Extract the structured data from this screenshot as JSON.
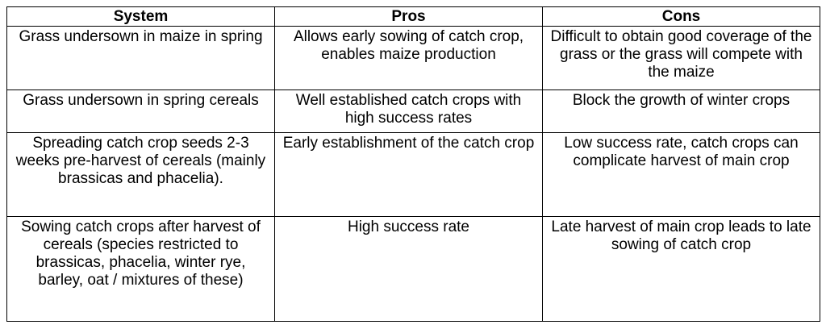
{
  "headers": {
    "system": "System",
    "pros": "Pros",
    "cons": "Cons"
  },
  "rows": [
    {
      "system": "Grass undersown in maize in spring",
      "pros": "Allows early sowing of catch crop, enables maize production",
      "cons": "Difficult to obtain good coverage of the grass or the grass will compete with the maize"
    },
    {
      "system": "Grass undersown in spring cereals",
      "pros": "Well established catch crops with high success rates",
      "cons": "Block the growth of winter crops"
    },
    {
      "system": "Spreading catch crop seeds 2-3 weeks pre-harvest of cereals (mainly brassicas and phacelia).",
      "pros": "Early establishment of the catch crop",
      "cons": "Low success rate, catch crops can complicate harvest of main crop"
    },
    {
      "system": "Sowing catch crops after harvest of cereals (species restricted to brassicas, phacelia, winter rye, barley, oat / mixtures of these)",
      "pros": "High success rate",
      "cons": "Late harvest of main crop leads to late sowing of catch crop"
    }
  ]
}
